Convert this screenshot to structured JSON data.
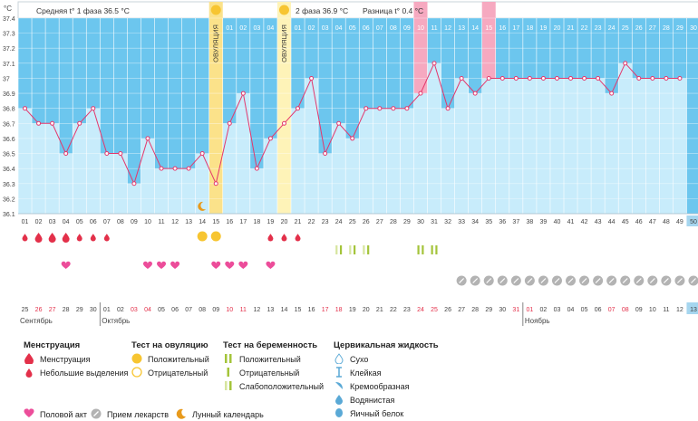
{
  "chart_data": {
    "type": "line",
    "y_unit": "°C",
    "ylim": [
      36.1,
      37.4
    ],
    "y_ticks": [
      "37.4",
      "37.3",
      "37.2",
      "37.1",
      "37",
      "36.9",
      "36.8",
      "36.7",
      "36.6",
      "36.5",
      "36.4",
      "36.3",
      "36.2",
      "36.1"
    ],
    "cycle_days": [
      "01",
      "02",
      "03",
      "04",
      "05",
      "06",
      "07",
      "08",
      "09",
      "10",
      "11",
      "12",
      "13",
      "14",
      "15",
      "16",
      "17",
      "18",
      "19",
      "20",
      "21",
      "22",
      "23",
      "24",
      "25",
      "26",
      "27",
      "28",
      "29",
      "30",
      "31",
      "32",
      "33",
      "34",
      "35",
      "36",
      "37",
      "38",
      "39",
      "40",
      "41",
      "42",
      "43",
      "44",
      "45",
      "46",
      "47",
      "48",
      "49",
      "50"
    ],
    "temperature": [
      36.8,
      36.7,
      36.7,
      36.5,
      36.7,
      36.8,
      36.5,
      36.5,
      36.3,
      36.6,
      36.4,
      36.4,
      36.4,
      36.5,
      36.3,
      36.7,
      36.9,
      36.4,
      36.6,
      36.7,
      36.8,
      37.0,
      36.5,
      36.7,
      36.6,
      36.8,
      36.8,
      36.8,
      36.8,
      36.9,
      37.1,
      36.8,
      37.0,
      36.9,
      37.0,
      37.0,
      37.0,
      37.0,
      37.0,
      37.0,
      37.0,
      37.0,
      37.0,
      36.9,
      37.1,
      37.0,
      37.0,
      37.0,
      37.0
    ],
    "phase1_header": "Средняя t° 1 фаза 36.5 °C",
    "phase2_header": "2 фаза 36.9 °C",
    "diff_header": "Разница t° 0.4 °C",
    "ovulation_label": "ОВУЛЯЦИЯ",
    "ovulation_days": [
      15,
      20
    ],
    "phase2_day_labels": [
      "01",
      "02",
      "03",
      "04",
      "01",
      "02",
      "03",
      "04",
      "05",
      "06",
      "07",
      "08",
      "09",
      "10",
      "11",
      "12",
      "13",
      "14",
      "15",
      "16",
      "17",
      "18",
      "19",
      "20",
      "21",
      "22",
      "23",
      "24",
      "25",
      "26",
      "27",
      "28",
      "29",
      "30"
    ],
    "highlight_days": [
      30,
      35
    ],
    "current_day": 50,
    "dates": [
      "25",
      "26",
      "27",
      "28",
      "29",
      "30",
      "01",
      "02",
      "03",
      "04",
      "05",
      "06",
      "07",
      "08",
      "09",
      "10",
      "11",
      "12",
      "13",
      "14",
      "15",
      "16",
      "17",
      "18",
      "19",
      "20",
      "21",
      "22",
      "23",
      "24",
      "25",
      "26",
      "27",
      "28",
      "29",
      "30",
      "31",
      "01",
      "02",
      "03",
      "04",
      "05",
      "06",
      "07",
      "08",
      "09",
      "10",
      "11",
      "12",
      "13"
    ],
    "weekend_dates": [
      2,
      3,
      9,
      10,
      16,
      17,
      23,
      24,
      30,
      31,
      37,
      38,
      44,
      45
    ],
    "months": [
      "Сентябрь",
      "Октябрь",
      "Ноябрь"
    ],
    "menstruation_days": [
      2,
      3,
      4
    ],
    "light_bleeding_days": [
      1,
      5,
      6,
      7,
      19,
      20,
      21
    ],
    "ovulation_test_positive": [
      15
    ],
    "ovulation_test_negative": [
      14
    ],
    "pregnancy_test_positive": [
      30,
      31
    ],
    "pregnancy_test_weak": [
      24,
      25,
      26
    ],
    "intercourse_days": [
      4,
      10,
      11,
      12,
      15,
      16,
      17,
      19
    ],
    "medication_days": [
      33,
      34,
      35,
      36,
      37,
      38,
      39,
      40,
      41,
      42,
      43,
      44,
      45,
      46,
      47,
      48,
      49,
      50
    ],
    "moon_day": 14
  },
  "legend": {
    "menstruation_title": "Менструация",
    "menstruation": "Менструация",
    "light_bleeding": "Небольшие выделения",
    "ovulation_title": "Тест на овуляцию",
    "ov_positive": "Положительный",
    "ov_negative": "Отрицательный",
    "pregnancy_title": "Тест на беременность",
    "pr_positive": "Положительный",
    "pr_negative": "Отрицательный",
    "pr_weak": "Слабоположительный",
    "cervical_title": "Цервикальная жидкость",
    "dry": "Сухо",
    "sticky": "Клейкая",
    "creamy": "Кремообразная",
    "watery": "Водянистая",
    "eggwhite": "Яичный белок",
    "intercourse": "Половой акт",
    "medication": "Прием лекарств",
    "lunar": "Лунный календарь"
  },
  "colors": {
    "phase_bg": "#6cc6ee",
    "col_fill": "#c8ecfb",
    "line": "#e4376c",
    "ovulation": "#fbe28a",
    "highlight": "#f6a9c0",
    "menses": "#e3304a",
    "heart": "#ec4d9a",
    "pill": "#b3b3b3",
    "test_green": "#a4c43a",
    "current": "#a6d6ef"
  }
}
